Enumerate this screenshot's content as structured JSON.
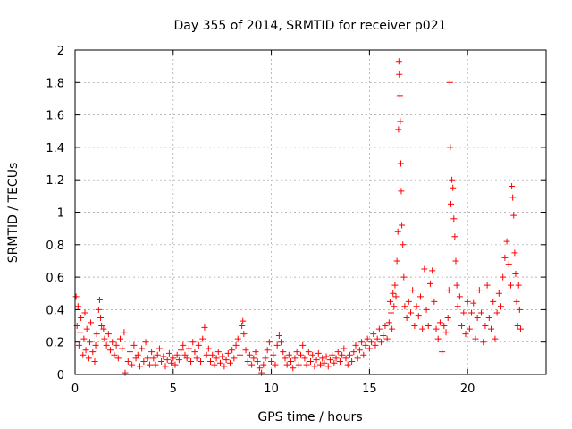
{
  "chart_data": {
    "type": "scatter",
    "title": "Day 355 of 2014, SRMTID for receiver p021",
    "xlabel": "GPS time / hours",
    "ylabel": "SRMTID / TECUs",
    "xlim": [
      0,
      24
    ],
    "ylim": [
      0,
      2
    ],
    "xticks": [
      0,
      5,
      10,
      15,
      20
    ],
    "xtick_labels": [
      "0",
      "5",
      "10",
      "15",
      "20"
    ],
    "yticks": [
      0,
      0.2,
      0.4,
      0.6,
      0.8,
      1,
      1.2,
      1.4,
      1.6,
      1.8,
      2
    ],
    "ytick_labels": [
      "0",
      "0.2",
      "0.4",
      "0.6",
      "0.8",
      "1",
      "1.2",
      "1.4",
      "1.6",
      "1.8",
      "2"
    ],
    "grid": true,
    "marker": "+",
    "color": "#ff0000",
    "series": [
      {
        "name": "SRMTID",
        "points": [
          [
            0.05,
            0.48
          ],
          [
            0.1,
            0.3
          ],
          [
            0.15,
            0.42
          ],
          [
            0.2,
            0.18
          ],
          [
            0.25,
            0.26
          ],
          [
            0.3,
            0.35
          ],
          [
            0.4,
            0.12
          ],
          [
            0.45,
            0.22
          ],
          [
            0.5,
            0.38
          ],
          [
            0.55,
            0.15
          ],
          [
            0.6,
            0.28
          ],
          [
            0.7,
            0.1
          ],
          [
            0.75,
            0.2
          ],
          [
            0.8,
            0.32
          ],
          [
            0.9,
            0.14
          ],
          [
            1.0,
            0.08
          ],
          [
            1.05,
            0.18
          ],
          [
            1.1,
            0.25
          ],
          [
            1.2,
            0.4
          ],
          [
            1.25,
            0.46
          ],
          [
            1.3,
            0.35
          ],
          [
            1.35,
            0.3
          ],
          [
            1.45,
            0.28
          ],
          [
            1.5,
            0.22
          ],
          [
            1.6,
            0.18
          ],
          [
            1.7,
            0.25
          ],
          [
            1.8,
            0.15
          ],
          [
            1.9,
            0.2
          ],
          [
            2.0,
            0.12
          ],
          [
            2.1,
            0.18
          ],
          [
            2.2,
            0.1
          ],
          [
            2.3,
            0.22
          ],
          [
            2.4,
            0.16
          ],
          [
            2.5,
            0.26
          ],
          [
            2.55,
            0.01
          ],
          [
            2.7,
            0.08
          ],
          [
            2.8,
            0.14
          ],
          [
            2.9,
            0.06
          ],
          [
            3.0,
            0.18
          ],
          [
            3.1,
            0.1
          ],
          [
            3.2,
            0.12
          ],
          [
            3.3,
            0.05
          ],
          [
            3.4,
            0.16
          ],
          [
            3.5,
            0.08
          ],
          [
            3.6,
            0.2
          ],
          [
            3.7,
            0.1
          ],
          [
            3.8,
            0.06
          ],
          [
            3.9,
            0.14
          ],
          [
            4.0,
            0.1
          ],
          [
            4.1,
            0.06
          ],
          [
            4.2,
            0.12
          ],
          [
            4.3,
            0.16
          ],
          [
            4.4,
            0.08
          ],
          [
            4.5,
            0.11
          ],
          [
            4.6,
            0.05
          ],
          [
            4.7,
            0.09
          ],
          [
            4.8,
            0.13
          ],
          [
            4.9,
            0.07
          ],
          [
            5.0,
            0.1
          ],
          [
            5.1,
            0.06
          ],
          [
            5.2,
            0.12
          ],
          [
            5.3,
            0.09
          ],
          [
            5.4,
            0.15
          ],
          [
            5.5,
            0.18
          ],
          [
            5.6,
            0.12
          ],
          [
            5.7,
            0.1
          ],
          [
            5.8,
            0.16
          ],
          [
            5.9,
            0.08
          ],
          [
            6.0,
            0.2
          ],
          [
            6.1,
            0.14
          ],
          [
            6.2,
            0.1
          ],
          [
            6.3,
            0.18
          ],
          [
            6.4,
            0.08
          ],
          [
            6.5,
            0.22
          ],
          [
            6.6,
            0.29
          ],
          [
            6.7,
            0.12
          ],
          [
            6.8,
            0.16
          ],
          [
            6.9,
            0.08
          ],
          [
            7.0,
            0.12
          ],
          [
            7.1,
            0.06
          ],
          [
            7.2,
            0.1
          ],
          [
            7.3,
            0.14
          ],
          [
            7.4,
            0.07
          ],
          [
            7.5,
            0.11
          ],
          [
            7.6,
            0.05
          ],
          [
            7.7,
            0.09
          ],
          [
            7.8,
            0.13
          ],
          [
            7.9,
            0.07
          ],
          [
            8.0,
            0.15
          ],
          [
            8.1,
            0.1
          ],
          [
            8.2,
            0.18
          ],
          [
            8.3,
            0.22
          ],
          [
            8.4,
            0.12
          ],
          [
            8.5,
            0.3
          ],
          [
            8.55,
            0.33
          ],
          [
            8.6,
            0.25
          ],
          [
            8.7,
            0.15
          ],
          [
            8.8,
            0.08
          ],
          [
            8.9,
            0.12
          ],
          [
            9.0,
            0.06
          ],
          [
            9.1,
            0.1
          ],
          [
            9.2,
            0.14
          ],
          [
            9.3,
            0.08
          ],
          [
            9.4,
            0.04
          ],
          [
            9.5,
            0.01
          ],
          [
            9.6,
            0.06
          ],
          [
            9.7,
            0.1
          ],
          [
            9.8,
            0.15
          ],
          [
            9.9,
            0.2
          ],
          [
            10.0,
            0.08
          ],
          [
            10.1,
            0.12
          ],
          [
            10.2,
            0.06
          ],
          [
            10.3,
            0.18
          ],
          [
            10.4,
            0.24
          ],
          [
            10.5,
            0.2
          ],
          [
            10.6,
            0.14
          ],
          [
            10.7,
            0.1
          ],
          [
            10.8,
            0.06
          ],
          [
            10.9,
            0.12
          ],
          [
            11.0,
            0.08
          ],
          [
            11.1,
            0.04
          ],
          [
            11.2,
            0.1
          ],
          [
            11.3,
            0.14
          ],
          [
            11.4,
            0.06
          ],
          [
            11.5,
            0.12
          ],
          [
            11.6,
            0.18
          ],
          [
            11.7,
            0.1
          ],
          [
            11.8,
            0.06
          ],
          [
            11.9,
            0.14
          ],
          [
            12.0,
            0.08
          ],
          [
            12.1,
            0.12
          ],
          [
            12.2,
            0.05
          ],
          [
            12.3,
            0.09
          ],
          [
            12.4,
            0.13
          ],
          [
            12.5,
            0.06
          ],
          [
            12.6,
            0.1
          ],
          [
            12.7,
            0.07
          ],
          [
            12.8,
            0.11
          ],
          [
            12.9,
            0.05
          ],
          [
            13.0,
            0.09
          ],
          [
            13.1,
            0.12
          ],
          [
            13.2,
            0.07
          ],
          [
            13.3,
            0.1
          ],
          [
            13.4,
            0.14
          ],
          [
            13.5,
            0.08
          ],
          [
            13.6,
            0.12
          ],
          [
            13.7,
            0.16
          ],
          [
            13.8,
            0.1
          ],
          [
            13.9,
            0.06
          ],
          [
            14.0,
            0.12
          ],
          [
            14.1,
            0.08
          ],
          [
            14.2,
            0.14
          ],
          [
            14.3,
            0.18
          ],
          [
            14.4,
            0.1
          ],
          [
            14.5,
            0.15
          ],
          [
            14.6,
            0.2
          ],
          [
            14.7,
            0.12
          ],
          [
            14.8,
            0.18
          ],
          [
            14.9,
            0.22
          ],
          [
            15.0,
            0.16
          ],
          [
            15.1,
            0.2
          ],
          [
            15.2,
            0.25
          ],
          [
            15.3,
            0.18
          ],
          [
            15.4,
            0.22
          ],
          [
            15.5,
            0.28
          ],
          [
            15.6,
            0.2
          ],
          [
            15.7,
            0.24
          ],
          [
            15.8,
            0.3
          ],
          [
            15.9,
            0.22
          ],
          [
            16.0,
            0.32
          ],
          [
            16.05,
            0.45
          ],
          [
            16.1,
            0.38
          ],
          [
            16.15,
            0.28
          ],
          [
            16.2,
            0.5
          ],
          [
            16.25,
            0.42
          ],
          [
            16.3,
            0.55
          ],
          [
            16.35,
            0.48
          ],
          [
            16.4,
            0.7
          ],
          [
            16.45,
            0.88
          ],
          [
            16.48,
            1.51
          ],
          [
            16.5,
            1.93
          ],
          [
            16.52,
            1.85
          ],
          [
            16.55,
            1.72
          ],
          [
            16.57,
            1.56
          ],
          [
            16.6,
            1.3
          ],
          [
            16.62,
            1.13
          ],
          [
            16.65,
            0.92
          ],
          [
            16.7,
            0.8
          ],
          [
            16.75,
            0.6
          ],
          [
            16.8,
            0.42
          ],
          [
            16.9,
            0.35
          ],
          [
            17.0,
            0.45
          ],
          [
            17.1,
            0.38
          ],
          [
            17.2,
            0.52
          ],
          [
            17.3,
            0.3
          ],
          [
            17.4,
            0.42
          ],
          [
            17.5,
            0.36
          ],
          [
            17.6,
            0.48
          ],
          [
            17.7,
            0.28
          ],
          [
            17.8,
            0.65
          ],
          [
            17.9,
            0.4
          ],
          [
            18.0,
            0.3
          ],
          [
            18.1,
            0.56
          ],
          [
            18.2,
            0.64
          ],
          [
            18.3,
            0.45
          ],
          [
            18.4,
            0.28
          ],
          [
            18.5,
            0.22
          ],
          [
            18.6,
            0.32
          ],
          [
            18.7,
            0.14
          ],
          [
            18.8,
            0.3
          ],
          [
            18.9,
            0.26
          ],
          [
            19.0,
            0.35
          ],
          [
            19.05,
            0.52
          ],
          [
            19.1,
            1.8
          ],
          [
            19.12,
            1.4
          ],
          [
            19.15,
            1.05
          ],
          [
            19.2,
            1.2
          ],
          [
            19.25,
            1.15
          ],
          [
            19.3,
            0.96
          ],
          [
            19.35,
            0.85
          ],
          [
            19.4,
            0.7
          ],
          [
            19.45,
            0.55
          ],
          [
            19.5,
            0.42
          ],
          [
            19.6,
            0.48
          ],
          [
            19.7,
            0.3
          ],
          [
            19.8,
            0.38
          ],
          [
            19.9,
            0.25
          ],
          [
            20.0,
            0.45
          ],
          [
            20.1,
            0.28
          ],
          [
            20.2,
            0.38
          ],
          [
            20.3,
            0.44
          ],
          [
            20.4,
            0.22
          ],
          [
            20.5,
            0.35
          ],
          [
            20.6,
            0.52
          ],
          [
            20.7,
            0.38
          ],
          [
            20.8,
            0.2
          ],
          [
            20.9,
            0.3
          ],
          [
            21.0,
            0.55
          ],
          [
            21.1,
            0.35
          ],
          [
            21.2,
            0.28
          ],
          [
            21.3,
            0.45
          ],
          [
            21.4,
            0.22
          ],
          [
            21.5,
            0.38
          ],
          [
            21.6,
            0.5
          ],
          [
            21.7,
            0.42
          ],
          [
            21.8,
            0.6
          ],
          [
            21.9,
            0.72
          ],
          [
            22.0,
            0.82
          ],
          [
            22.1,
            0.68
          ],
          [
            22.2,
            0.55
          ],
          [
            22.25,
            1.16
          ],
          [
            22.3,
            1.09
          ],
          [
            22.35,
            0.98
          ],
          [
            22.4,
            0.75
          ],
          [
            22.45,
            0.62
          ],
          [
            22.5,
            0.45
          ],
          [
            22.55,
            0.3
          ],
          [
            22.6,
            0.55
          ],
          [
            22.65,
            0.4
          ],
          [
            22.7,
            0.28
          ]
        ]
      }
    ]
  }
}
